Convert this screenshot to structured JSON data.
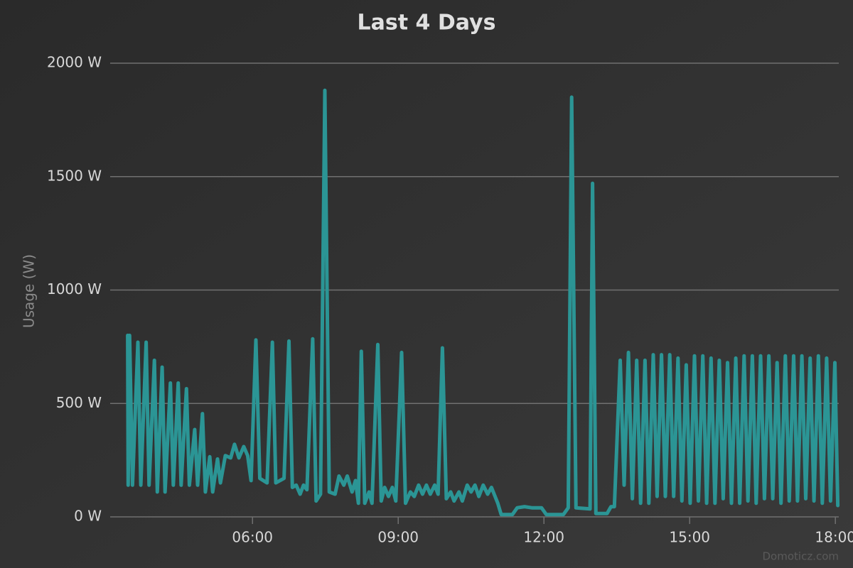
{
  "chart_data": {
    "type": "line",
    "title": "Last 4 Days",
    "y_label": "Usage (W)",
    "watermark": "Domoticz.com",
    "color": "#2b9595",
    "grid": true,
    "xlim": [
      3.07,
      18.07
    ],
    "xticks": [
      {
        "value": 6,
        "label": "06:00"
      },
      {
        "value": 9,
        "label": "09:00"
      },
      {
        "value": 12,
        "label": "12:00"
      },
      {
        "value": 15,
        "label": "15:00"
      },
      {
        "value": 18,
        "label": "18:00"
      }
    ],
    "ylim": [
      0,
      2000
    ],
    "yticks": [
      {
        "value": 0,
        "label": "0 W"
      },
      {
        "value": 500,
        "label": "500 W"
      },
      {
        "value": 1000,
        "label": "1000 W"
      },
      {
        "value": 1500,
        "label": "1500 W"
      },
      {
        "value": 2000,
        "label": "2000 W"
      }
    ],
    "x": [
      3.43,
      3.44,
      3.47,
      3.53,
      3.64,
      3.7,
      3.81,
      3.87,
      3.98,
      4.04,
      4.14,
      4.2,
      4.31,
      4.37,
      4.47,
      4.53,
      4.64,
      4.7,
      4.81,
      4.87,
      4.97,
      5.03,
      5.12,
      5.18,
      5.28,
      5.34,
      5.44,
      5.55,
      5.63,
      5.72,
      5.82,
      5.9,
      5.97,
      6.07,
      6.15,
      6.3,
      6.41,
      6.48,
      6.65,
      6.75,
      6.82,
      6.9,
      6.98,
      7.05,
      7.12,
      7.24,
      7.31,
      7.4,
      7.49,
      7.58,
      7.7,
      7.78,
      7.88,
      7.95,
      8.05,
      8.12,
      8.18,
      8.24,
      8.31,
      8.4,
      8.46,
      8.58,
      8.65,
      8.72,
      8.8,
      8.88,
      8.95,
      9.07,
      9.15,
      9.25,
      9.33,
      9.42,
      9.5,
      9.58,
      9.66,
      9.75,
      9.82,
      9.91,
      9.99,
      10.08,
      10.15,
      10.25,
      10.32,
      10.42,
      10.5,
      10.58,
      10.66,
      10.75,
      10.84,
      10.92,
      11.05,
      11.12,
      11.35,
      11.45,
      11.6,
      11.75,
      11.95,
      12.05,
      12.4,
      12.5,
      12.57,
      12.66,
      12.95,
      13.0,
      13.07,
      13.3,
      13.38,
      13.45,
      13.57,
      13.65,
      13.74,
      13.82,
      13.91,
      13.99,
      14.08,
      14.16,
      14.25,
      14.33,
      14.42,
      14.5,
      14.59,
      14.67,
      14.76,
      14.84,
      14.93,
      15.01,
      15.1,
      15.18,
      15.27,
      15.35,
      15.44,
      15.52,
      15.61,
      15.69,
      15.78,
      15.86,
      15.95,
      16.03,
      16.12,
      16.2,
      16.29,
      16.37,
      16.46,
      16.54,
      16.63,
      16.71,
      16.8,
      16.88,
      16.97,
      17.05,
      17.14,
      17.22,
      17.31,
      17.39,
      17.48,
      17.56,
      17.65,
      17.73,
      17.82,
      17.9,
      17.99,
      18.05
    ],
    "values": [
      800,
      140,
      800,
      140,
      770,
      140,
      770,
      140,
      690,
      110,
      660,
      110,
      590,
      140,
      590,
      140,
      565,
      140,
      385,
      140,
      455,
      110,
      265,
      110,
      255,
      150,
      270,
      260,
      320,
      260,
      310,
      270,
      160,
      780,
      170,
      150,
      770,
      150,
      170,
      775,
      130,
      140,
      100,
      140,
      120,
      785,
      70,
      100,
      1880,
      110,
      100,
      180,
      140,
      180,
      110,
      160,
      60,
      730,
      60,
      110,
      60,
      760,
      70,
      130,
      90,
      130,
      70,
      725,
      60,
      110,
      90,
      140,
      100,
      140,
      100,
      140,
      100,
      745,
      80,
      110,
      70,
      110,
      70,
      140,
      110,
      140,
      90,
      140,
      100,
      130,
      60,
      10,
      10,
      40,
      45,
      40,
      40,
      10,
      10,
      40,
      1850,
      40,
      35,
      1470,
      15,
      15,
      45,
      45,
      690,
      140,
      725,
      80,
      690,
      60,
      690,
      60,
      715,
      90,
      715,
      90,
      715,
      90,
      700,
      70,
      670,
      60,
      710,
      70,
      710,
      60,
      700,
      60,
      690,
      80,
      680,
      60,
      700,
      60,
      710,
      70,
      710,
      60,
      710,
      80,
      710,
      80,
      680,
      60,
      710,
      70,
      710,
      70,
      710,
      80,
      700,
      70,
      710,
      60,
      700,
      70,
      680,
      50
    ]
  }
}
